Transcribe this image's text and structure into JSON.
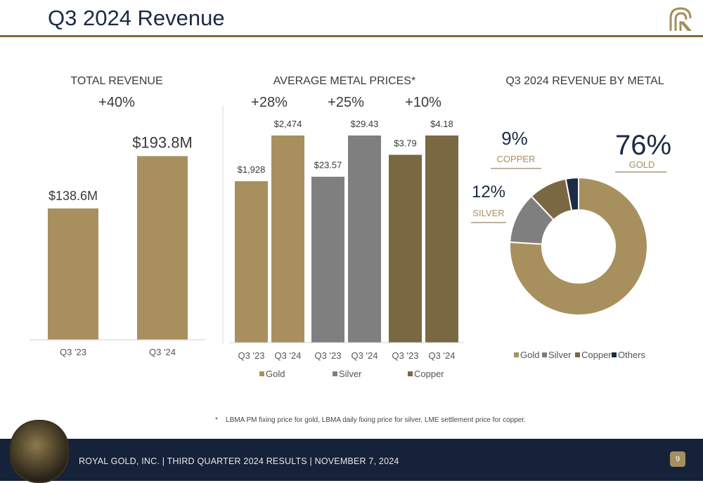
{
  "slide": {
    "title": "Q3 2024 Revenue",
    "footnote_mark": "*",
    "footnote": "LBMA PM fixing price for gold, LBMA daily fixing price for silver, LME settlement price for copper.",
    "footer_text": "ROYAL GOLD, INC.  |  THIRD QUARTER 2024 RESULTS  |  NOVEMBER 7, 2024",
    "page_number": "9"
  },
  "colors": {
    "gold": "#a8905e",
    "silver": "#7f7f7f",
    "copper": "#7a6843",
    "others": "#1c2b46",
    "title": "#1b2a44",
    "rule": "#7d6a3f"
  },
  "chart_data": [
    {
      "type": "bar",
      "title": "TOTAL REVENUE",
      "growth": "+40%",
      "categories": [
        "Q3 '23",
        "Q3 '24"
      ],
      "values": [
        138.6,
        193.8
      ],
      "value_labels": [
        "$138.6M",
        "$193.8M"
      ],
      "ylim": [
        0,
        200
      ]
    },
    {
      "type": "bar",
      "title": "AVERAGE METAL PRICES*",
      "groups": [
        {
          "name": "Gold",
          "growth": "+28%",
          "categories": [
            "Q3 '23",
            "Q3 '24"
          ],
          "values": [
            1928,
            2474
          ],
          "value_labels": [
            "$1,928",
            "$2,474"
          ],
          "color": "#a8905e"
        },
        {
          "name": "Silver",
          "growth": "+25%",
          "categories": [
            "Q3 '23",
            "Q3 '24"
          ],
          "values": [
            23.57,
            29.43
          ],
          "value_labels": [
            "$23.57",
            "$29.43"
          ],
          "color": "#7f7f7f"
        },
        {
          "name": "Copper",
          "growth": "+10%",
          "categories": [
            "Q3 '23",
            "Q3 '24"
          ],
          "values": [
            3.79,
            4.18
          ],
          "value_labels": [
            "$3.79",
            "$4.18"
          ],
          "color": "#7a6843"
        }
      ],
      "legend": [
        "Gold",
        "Silver",
        "Copper"
      ]
    },
    {
      "type": "pie",
      "title": "Q3 2024 REVENUE BY METAL",
      "labels": [
        "Gold",
        "Silver",
        "Copper",
        "Others"
      ],
      "values": [
        76,
        12,
        9,
        3
      ],
      "callouts": [
        {
          "pct": "76%",
          "name": "GOLD"
        },
        {
          "pct": "12%",
          "name": "SILVER"
        },
        {
          "pct": "9%",
          "name": "COPPER"
        }
      ]
    }
  ]
}
